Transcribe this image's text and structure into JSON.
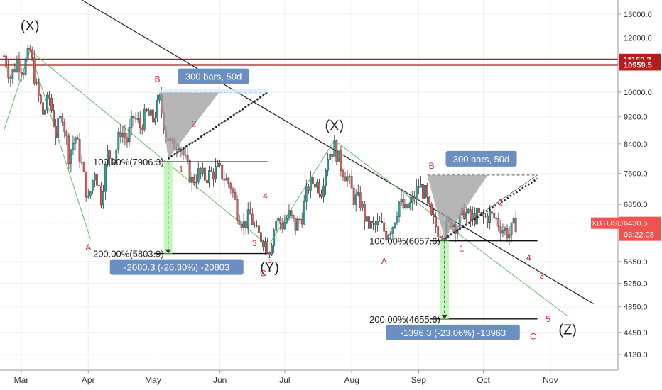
{
  "chart_data": {
    "type": "candlestick",
    "title": "",
    "symbol": "XBTUSD",
    "last_price": 6430.5,
    "countdown": "03:22:08",
    "ylim": [
      3950,
      14000
    ],
    "y_ticks": [
      13000.0,
      12000.0,
      11000.0,
      10000.0,
      9200.0,
      8400.0,
      7600.0,
      6850.0,
      6430.5,
      5650.0,
      5250.0,
      4850.0,
      4450.0,
      4130.0
    ],
    "y_tick_labels": [
      "13000.0",
      "12000.0",
      "11000.0",
      "10000.0",
      "9200.0",
      "8400.0",
      "7600.0",
      "6850.0",
      "5650.0",
      "5250.0",
      "4850.0",
      "4450.0",
      "4130.0"
    ],
    "x_ticks": [
      {
        "label": "Mar",
        "day": 0
      },
      {
        "label": "Apr",
        "day": 31
      },
      {
        "label": "May",
        "day": 61
      },
      {
        "label": "Jun",
        "day": 92
      },
      {
        "label": "Jul",
        "day": 122
      },
      {
        "label": "Aug",
        "day": 153
      },
      {
        "label": "Sep",
        "day": 184
      },
      {
        "label": "Oct",
        "day": 214
      },
      {
        "label": "Nov",
        "day": 245
      }
    ],
    "horizontal_levels": [
      {
        "label": "11162.3",
        "value": 11162.3,
        "color": "#b71c1c"
      },
      {
        "label": "10959.5",
        "value": 10959.5,
        "color": "#b71c1c"
      }
    ],
    "price_path": [
      {
        "day": -8,
        "price": 11300
      },
      {
        "day": -5,
        "price": 10500
      },
      {
        "day": -2,
        "price": 11100
      },
      {
        "day": 1,
        "price": 10800
      },
      {
        "day": 4,
        "price": 11500
      },
      {
        "day": 7,
        "price": 10100
      },
      {
        "day": 10,
        "price": 9300
      },
      {
        "day": 13,
        "price": 9800
      },
      {
        "day": 16,
        "price": 8700
      },
      {
        "day": 19,
        "price": 9300
      },
      {
        "day": 22,
        "price": 8100
      },
      {
        "day": 25,
        "price": 8600
      },
      {
        "day": 28,
        "price": 7800
      },
      {
        "day": 31,
        "price": 6900
      },
      {
        "day": 34,
        "price": 7700
      },
      {
        "day": 37,
        "price": 7000
      },
      {
        "day": 40,
        "price": 8100
      },
      {
        "day": 43,
        "price": 8000
      },
      {
        "day": 46,
        "price": 8800
      },
      {
        "day": 49,
        "price": 8500
      },
      {
        "day": 52,
        "price": 9200
      },
      {
        "day": 55,
        "price": 8900
      },
      {
        "day": 58,
        "price": 9300
      },
      {
        "day": 61,
        "price": 9100
      },
      {
        "day": 64,
        "price": 9700
      },
      {
        "day": 67,
        "price": 8700
      },
      {
        "day": 70,
        "price": 8300
      },
      {
        "day": 73,
        "price": 8500
      },
      {
        "day": 76,
        "price": 7900
      },
      {
        "day": 79,
        "price": 7400
      },
      {
        "day": 82,
        "price": 7600
      },
      {
        "day": 85,
        "price": 7500
      },
      {
        "day": 88,
        "price": 7600
      },
      {
        "day": 91,
        "price": 7700
      },
      {
        "day": 94,
        "price": 7500
      },
      {
        "day": 97,
        "price": 7300
      },
      {
        "day": 100,
        "price": 6700
      },
      {
        "day": 103,
        "price": 6400
      },
      {
        "day": 106,
        "price": 6600
      },
      {
        "day": 109,
        "price": 6200
      },
      {
        "day": 112,
        "price": 6100
      },
      {
        "day": 115,
        "price": 5900
      },
      {
        "day": 118,
        "price": 6500
      },
      {
        "day": 121,
        "price": 6400
      },
      {
        "day": 124,
        "price": 6600
      },
      {
        "day": 127,
        "price": 6350
      },
      {
        "day": 130,
        "price": 6600
      },
      {
        "day": 133,
        "price": 7300
      },
      {
        "day": 136,
        "price": 7400
      },
      {
        "day": 139,
        "price": 7200
      },
      {
        "day": 142,
        "price": 8100
      },
      {
        "day": 145,
        "price": 8300
      },
      {
        "day": 148,
        "price": 7800
      },
      {
        "day": 151,
        "price": 7500
      },
      {
        "day": 154,
        "price": 7000
      },
      {
        "day": 157,
        "price": 6900
      },
      {
        "day": 160,
        "price": 6400
      },
      {
        "day": 163,
        "price": 6350
      },
      {
        "day": 166,
        "price": 6400
      },
      {
        "day": 169,
        "price": 6200
      },
      {
        "day": 172,
        "price": 6400
      },
      {
        "day": 175,
        "price": 6900
      },
      {
        "day": 178,
        "price": 6700
      },
      {
        "day": 181,
        "price": 6900
      },
      {
        "day": 184,
        "price": 7300
      },
      {
        "day": 187,
        "price": 7100
      },
      {
        "day": 190,
        "price": 6500
      },
      {
        "day": 193,
        "price": 6300
      },
      {
        "day": 196,
        "price": 6250
      },
      {
        "day": 199,
        "price": 6500
      },
      {
        "day": 202,
        "price": 6350
      },
      {
        "day": 205,
        "price": 6700
      },
      {
        "day": 208,
        "price": 6500
      },
      {
        "day": 211,
        "price": 6600
      },
      {
        "day": 214,
        "price": 6550
      },
      {
        "day": 217,
        "price": 6600
      },
      {
        "day": 220,
        "price": 6500
      },
      {
        "day": 223,
        "price": 6300
      },
      {
        "day": 226,
        "price": 6200
      },
      {
        "day": 229,
        "price": 6430.5
      }
    ],
    "trend_lines": [
      {
        "name": "main-downtrend",
        "from": {
          "day": 6,
          "price": 15000
        },
        "to": {
          "day": 265,
          "price": 4900
        },
        "color": "#222222"
      },
      {
        "name": "channel-upper-1",
        "from": {
          "day": 4,
          "price": 11500
        },
        "to": {
          "day": 112,
          "price": 6050
        },
        "color": "#66bb6a"
      },
      {
        "name": "channel-left-rise",
        "from": {
          "day": -8,
          "price": 8800
        },
        "to": {
          "day": 4,
          "price": 11500
        },
        "color": "#66bb6a"
      },
      {
        "name": "channel-rise-2",
        "from": {
          "day": 115,
          "price": 6000
        },
        "to": {
          "day": 145,
          "price": 8500
        },
        "color": "#66bb6a"
      },
      {
        "name": "channel-upper-2",
        "from": {
          "day": 145,
          "price": 8500
        },
        "to": {
          "day": 253,
          "price": 4700
        },
        "color": "#66bb6a"
      },
      {
        "name": "channel-left-bottom",
        "from": {
          "day": 4,
          "price": 11500
        },
        "to": {
          "day": 32,
          "price": 6100
        },
        "color": "#66bb6a"
      }
    ],
    "projections": [
      {
        "bars_label": "300 bars, 50d",
        "level_100": "100.00%(7906.3)",
        "level_200": "200.00%(5803.9)",
        "change_label": "-2080.3 (-26.30%) -20803",
        "top_price": 9980,
        "start_day": 64,
        "end_day": 114,
        "fan_apex": {
          "day": 68,
          "price": 7990
        },
        "level_100_value": 7906.3,
        "level_200_value": 5803.9
      },
      {
        "bars_label": "300 bars, 50d",
        "level_100": "100.00%(6057.6)",
        "level_200": "200.00%(4655.6)",
        "change_label": "-1396.3 (-23.06%) -13963",
        "top_price": 7560,
        "start_day": 188,
        "end_day": 239,
        "fan_apex": {
          "day": 196,
          "price": 6100
        },
        "level_100_value": 6057.6,
        "level_200_value": 4655.6
      }
    ],
    "wave_labels": [
      {
        "text": "(X)",
        "day": 4,
        "price": 12300,
        "color": "#222222",
        "size": 20
      },
      {
        "text": "(X)",
        "day": 145,
        "price": 8800,
        "color": "#222222",
        "size": 20
      },
      {
        "text": "(Y)",
        "day": 115,
        "price": 5450,
        "color": "#222222",
        "size": 20
      },
      {
        "text": "(Z)",
        "day": 253,
        "price": 4420,
        "color": "#222222",
        "size": 20
      },
      {
        "text": "A",
        "day": 31,
        "price": 5870,
        "color": "#c62828",
        "size": 12
      },
      {
        "text": "B",
        "day": 63,
        "price": 10350,
        "color": "#c62828",
        "size": 12
      },
      {
        "text": "C",
        "day": 112,
        "price": 5380,
        "color": "#c62828",
        "size": 12
      },
      {
        "text": "1",
        "day": 74,
        "price": 7640,
        "color": "#c62828",
        "size": 12
      },
      {
        "text": "2",
        "day": 80,
        "price": 8900,
        "color": "#c62828",
        "size": 12
      },
      {
        "text": "3",
        "day": 108,
        "price": 5950,
        "color": "#c62828",
        "size": 12
      },
      {
        "text": "4",
        "day": 113,
        "price": 6980,
        "color": "#c62828",
        "size": 12
      },
      {
        "text": "5",
        "day": 115,
        "price": 5620,
        "color": "#c62828",
        "size": 12
      },
      {
        "text": "A",
        "day": 168,
        "price": 5600,
        "color": "#c62828",
        "size": 12
      },
      {
        "text": "B",
        "day": 190,
        "price": 7720,
        "color": "#c62828",
        "size": 12
      },
      {
        "text": "1",
        "day": 204,
        "price": 5850,
        "color": "#c62828",
        "size": 12
      },
      {
        "text": "2",
        "day": 222,
        "price": 6830,
        "color": "#c62828",
        "size": 12
      },
      {
        "text": "3",
        "day": 241,
        "price": 5330,
        "color": "#c62828",
        "size": 12
      },
      {
        "text": "4",
        "day": 235,
        "price": 5670,
        "color": "#c62828",
        "size": 12
      },
      {
        "text": "5",
        "day": 244,
        "price": 4610,
        "color": "#c62828",
        "size": 12
      },
      {
        "text": "C",
        "day": 237,
        "price": 4350,
        "color": "#c62828",
        "size": 12
      }
    ],
    "colors": {
      "up": "#26a69a",
      "down": "#ef5350",
      "wick": "#333333",
      "grid": "#f0f0f0",
      "axis": "#999999",
      "box": "#6b8fc2",
      "price_tag": "#ef5350",
      "projection_green": "#b9f6b0"
    }
  }
}
